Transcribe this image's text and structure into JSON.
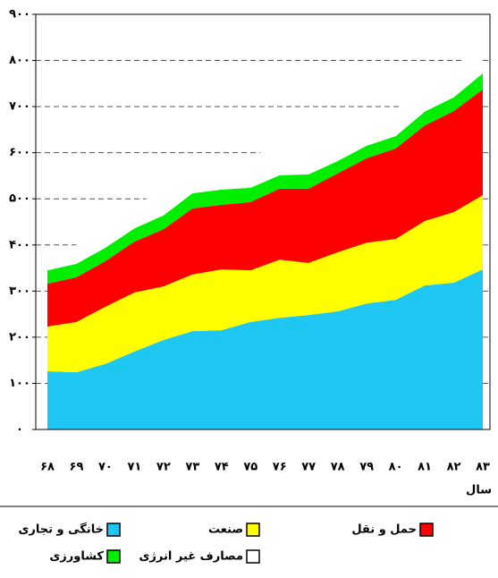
{
  "chart_data": {
    "type": "stacked-area",
    "x_label": "سال",
    "categories": [
      "۶۸",
      "۶۹",
      "۷۰",
      "۷۱",
      "۷۲",
      "۷۳",
      "۷۴",
      "۷۵",
      "۷۶",
      "۷۷",
      "۷۸",
      "۷۹",
      "۸۰",
      "۸۱",
      "۸۲",
      "۸۳"
    ],
    "series": [
      {
        "name": "خانگی و تجاری",
        "color": "#1ec6f2",
        "values": [
          126,
          124,
          142,
          169,
          194,
          213,
          215,
          233,
          242,
          248,
          256,
          273,
          281,
          312,
          318,
          347
        ]
      },
      {
        "name": "صنعت",
        "color": "#ffff00",
        "values": [
          97,
          109,
          124,
          128,
          116,
          123,
          132,
          112,
          126,
          113,
          128,
          132,
          132,
          140,
          153,
          161
        ]
      },
      {
        "name": "حمل و نقل",
        "color": "#ff0000",
        "values": [
          93,
          97,
          99,
          110,
          124,
          143,
          140,
          148,
          154,
          161,
          171,
          183,
          196,
          207,
          219,
          229
        ]
      },
      {
        "name": "کشاورزی",
        "color": "#00ee00",
        "values": [
          29,
          29,
          29,
          29,
          30,
          33,
          33,
          31,
          29,
          31,
          27,
          27,
          27,
          30,
          30,
          35
        ]
      },
      {
        "name": "مصارف غیر انرژی",
        "color": "#ffffff",
        "values": [
          24,
          41,
          54,
          47,
          60,
          50,
          46,
          66,
          70,
          87,
          70,
          56,
          56,
          56,
          60,
          68
        ]
      }
    ],
    "ylim": [
      0,
      900
    ],
    "yticks": [
      {
        "value": 0,
        "label": "۰"
      },
      {
        "value": 100,
        "label": "۱۰۰"
      },
      {
        "value": 200,
        "label": "۲۰۰"
      },
      {
        "value": 300,
        "label": "۳۰۰"
      },
      {
        "value": 400,
        "label": "۴۰۰"
      },
      {
        "value": 500,
        "label": "۵۰۰"
      },
      {
        "value": 600,
        "label": "۶۰۰"
      },
      {
        "value": 700,
        "label": "۷۰۰"
      },
      {
        "value": 800,
        "label": "۸۰۰"
      },
      {
        "value": 900,
        "label": "۹۰۰"
      }
    ],
    "grid": true
  }
}
